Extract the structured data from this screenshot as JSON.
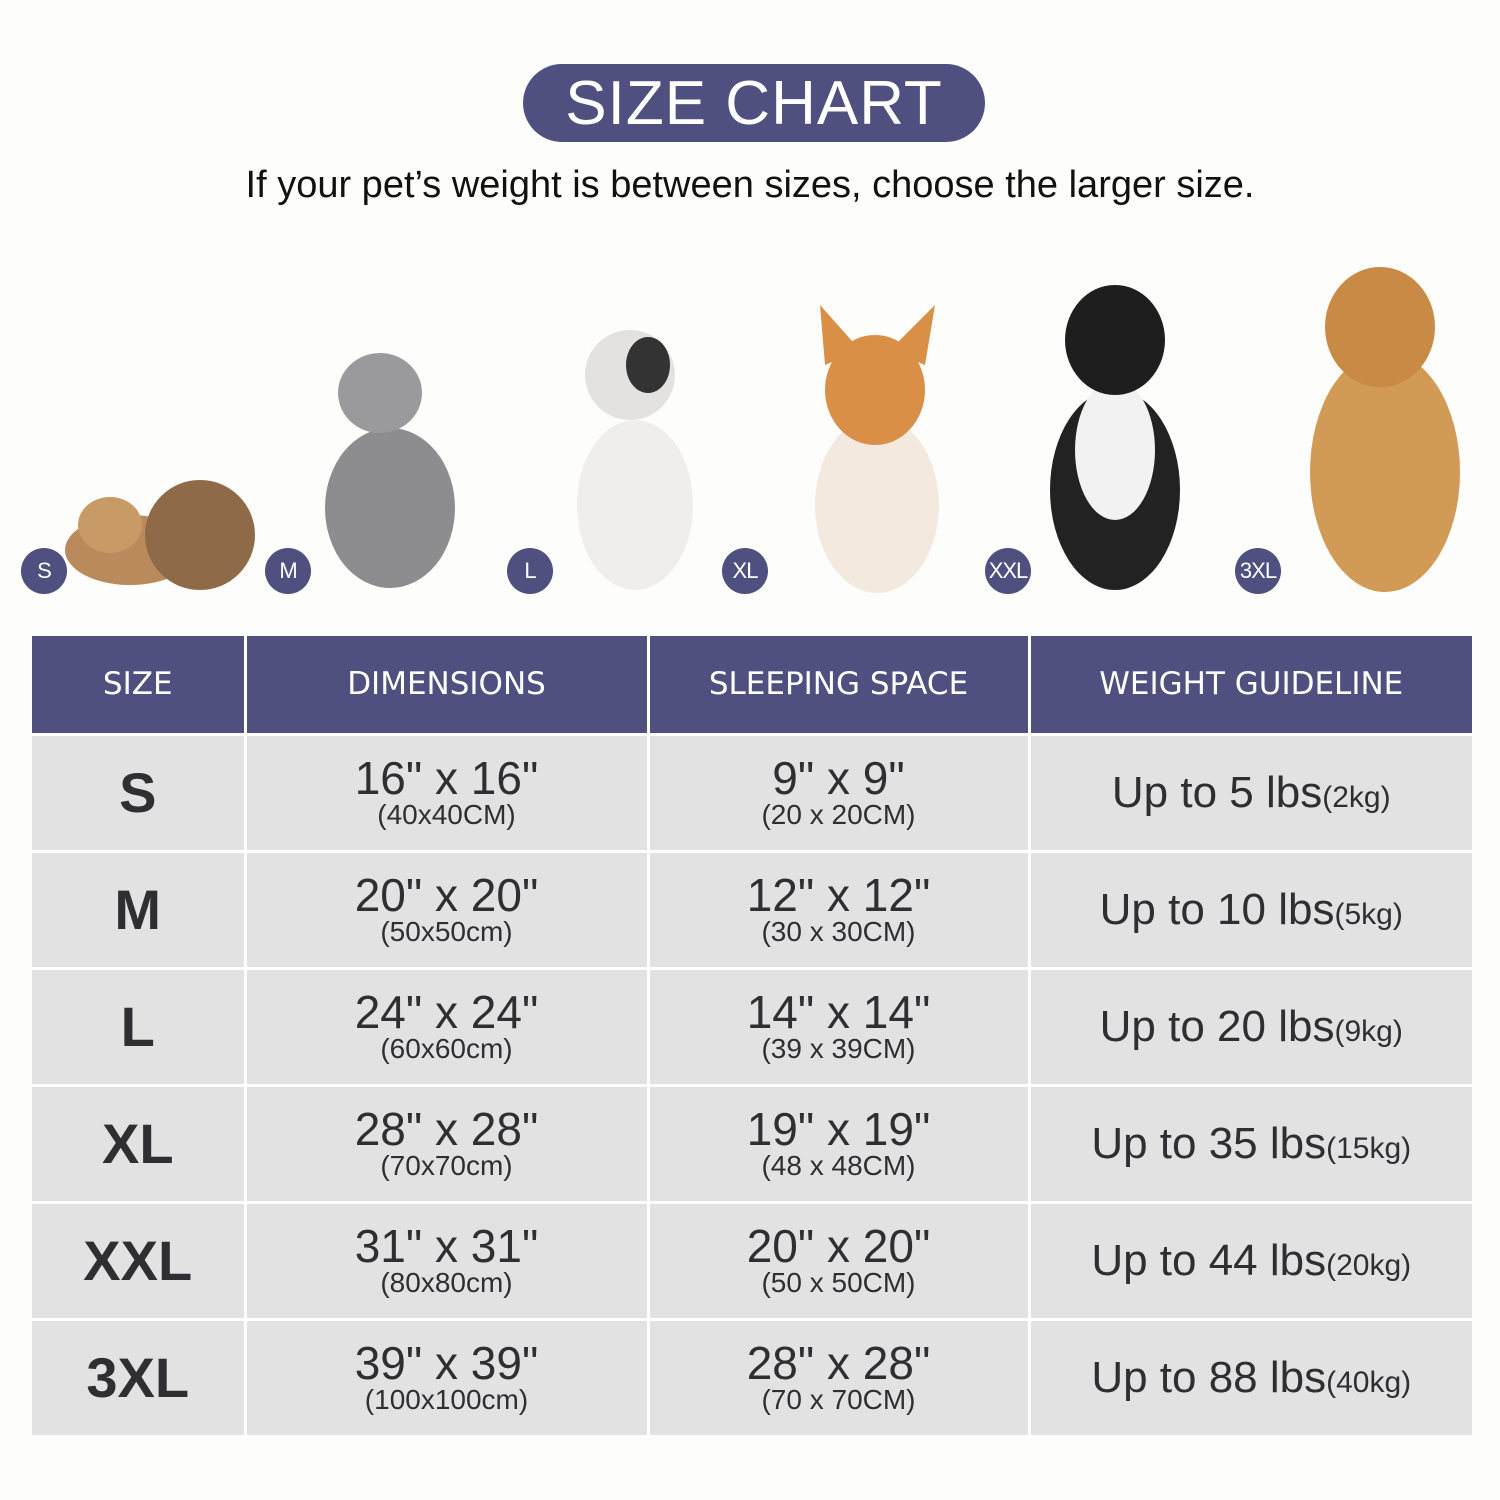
{
  "title": "SIZE CHART",
  "subtitle": "If your pet’s weight is between sizes, choose the larger size.",
  "badges": [
    "S",
    "M",
    "L",
    "XL",
    "XXL",
    "3XL"
  ],
  "pets": [
    "puppies",
    "cat",
    "french-bulldog",
    "corgi",
    "border-collie",
    "golden-retriever"
  ],
  "colors": {
    "accent": "#4f4f80",
    "cell": "#e2e2e2",
    "text": "#2f2f33"
  },
  "table": {
    "headers": [
      "SIZE",
      "DIMENSIONS",
      "SLEEPING SPACE",
      "WEIGHT GUIDELINE"
    ],
    "rows": [
      {
        "size": "S",
        "dim": "16\" x 16\"",
        "dim_metric": "(40x40CM)",
        "sleep": "9\" x 9\"",
        "sleep_metric": "(20 x 20CM)",
        "weight": "Up to 5 lbs",
        "weight_metric": "(2kg)"
      },
      {
        "size": "M",
        "dim": "20\" x 20\"",
        "dim_metric": "(50x50cm)",
        "sleep": "12\" x 12\"",
        "sleep_metric": "(30 x 30CM)",
        "weight": "Up to 10 lbs",
        "weight_metric": "(5kg)"
      },
      {
        "size": "L",
        "dim": "24\" x 24\"",
        "dim_metric": "(60x60cm)",
        "sleep": "14\" x 14\"",
        "sleep_metric": "(39 x 39CM)",
        "weight": "Up to 20 lbs",
        "weight_metric": "(9kg)"
      },
      {
        "size": "XL",
        "dim": "28\" x 28\"",
        "dim_metric": "(70x70cm)",
        "sleep": "19\" x 19\"",
        "sleep_metric": "(48 x 48CM)",
        "weight": "Up to 35 lbs",
        "weight_metric": "(15kg)"
      },
      {
        "size": "XXL",
        "dim": "31\" x 31\"",
        "dim_metric": "(80x80cm)",
        "sleep": "20\" x 20\"",
        "sleep_metric": "(50 x 50CM)",
        "weight": "Up to 44 lbs",
        "weight_metric": "(20kg)"
      },
      {
        "size": "3XL",
        "dim": "39\" x 39\"",
        "dim_metric": "(100x100cm)",
        "sleep": "28\" x 28\"",
        "sleep_metric": "(70 x 70CM)",
        "weight": "Up to 88 lbs",
        "weight_metric": "(40kg)"
      }
    ]
  }
}
